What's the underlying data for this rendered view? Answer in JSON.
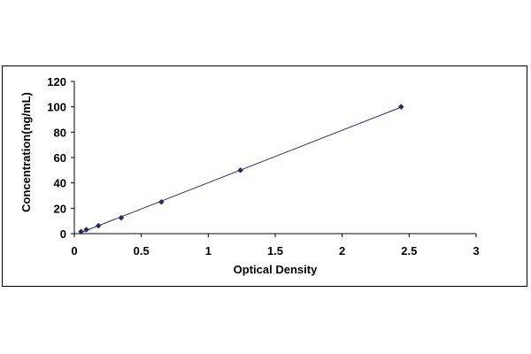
{
  "chart_data": {
    "type": "scatter",
    "title": "",
    "xlabel": "Optical Density",
    "ylabel": "Concentration(ng/mL)",
    "xlim": [
      0,
      3
    ],
    "ylim": [
      0,
      120
    ],
    "x_ticks": [
      "0",
      "0.5",
      "1",
      "1.5",
      "2",
      "2.5",
      "3"
    ],
    "y_ticks": [
      "0",
      "20",
      "40",
      "60",
      "80",
      "100",
      "120"
    ],
    "grid": false,
    "legend": "none",
    "series": [
      {
        "points": [
          {
            "x": 0.05,
            "y": 1.56
          },
          {
            "x": 0.09,
            "y": 3.12
          },
          {
            "x": 0.18,
            "y": 6.25
          },
          {
            "x": 0.35,
            "y": 12.5
          },
          {
            "x": 0.65,
            "y": 25
          },
          {
            "x": 1.24,
            "y": 50
          },
          {
            "x": 2.44,
            "y": 100
          }
        ],
        "trendline": true,
        "color": "#1f2a6b"
      }
    ]
  }
}
